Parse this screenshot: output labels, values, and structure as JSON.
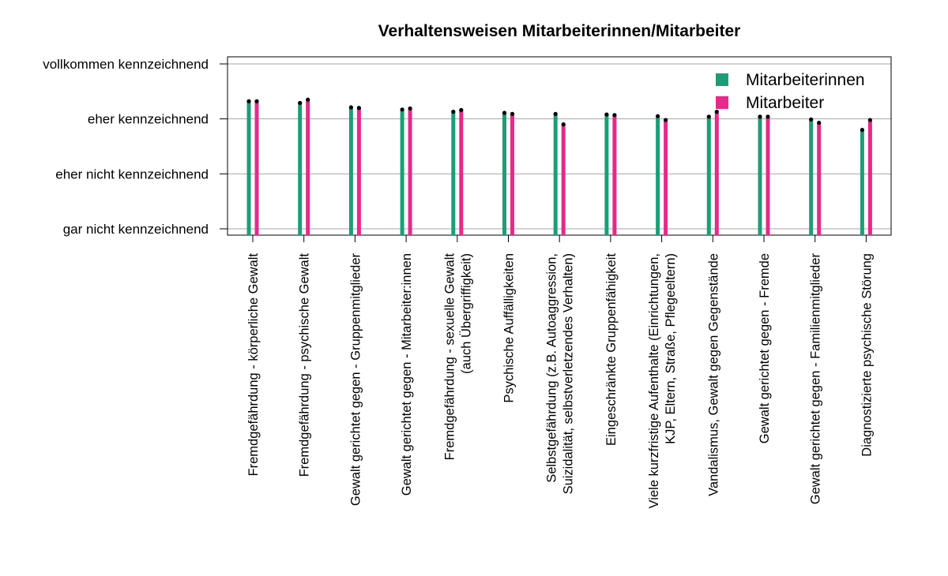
{
  "chart_data": {
    "type": "bar",
    "title": "Verhaltensweisen Mitarbeiterinnen/Mitarbeiter",
    "xlabel": "",
    "ylabel": "",
    "ylim": [
      1,
      4
    ],
    "y_ticks": [
      {
        "value": 1,
        "label": "gar nicht kennzeichnend"
      },
      {
        "value": 2,
        "label": "eher nicht kennzeichnend"
      },
      {
        "value": 3,
        "label": "eher kennzeichnend"
      },
      {
        "value": 4,
        "label": "vollkommen kennzeichnend"
      }
    ],
    "grid": "horizontal",
    "legend_position": "top-right",
    "categories": [
      [
        "Fremdgefährdung - körperliche Gewalt"
      ],
      [
        "Fremdgefährdung - psychische Gewalt"
      ],
      [
        "Gewalt gerichtet gegen - Gruppenmitglieder"
      ],
      [
        "Gewalt gerichtet gegen - Mitarbeiter:innen"
      ],
      [
        "Fremdgefährdung - sexuelle Gewalt",
        "(auch Übergriffigkeit)"
      ],
      [
        "Psychische Auffälligkeiten"
      ],
      [
        "Selbstgefährdung (z.B. Autoaggression,",
        "Suizidalität, selbstverletzendes Verhalten)"
      ],
      [
        "Eingeschränkte Gruppenfähigkeit"
      ],
      [
        "Viele kurzfristige Aufenthalte (Einrichtungen,",
        "KJP, Eltern, Straße, Pflegeeltern)"
      ],
      [
        "Vandalismus, Gewalt gegen Gegenstände"
      ],
      [
        "Gewalt gerichtet gegen - Fremde"
      ],
      [
        "Gewalt gerichtet gegen - Familienmitglieder"
      ],
      [
        "Diagnostizierte psychische Störung"
      ]
    ],
    "series": [
      {
        "name": "Mitarbeiterinnen",
        "color": "#1b9e77",
        "values": [
          3.32,
          3.29,
          3.21,
          3.17,
          3.13,
          3.11,
          3.09,
          3.08,
          3.05,
          3.04,
          3.04,
          2.99,
          2.8
        ]
      },
      {
        "name": "Mitarbeiter",
        "color": "#e7298a",
        "values": [
          3.32,
          3.35,
          3.2,
          3.19,
          3.16,
          3.09,
          2.9,
          3.07,
          2.98,
          3.13,
          3.04,
          2.93,
          2.98
        ]
      }
    ]
  }
}
